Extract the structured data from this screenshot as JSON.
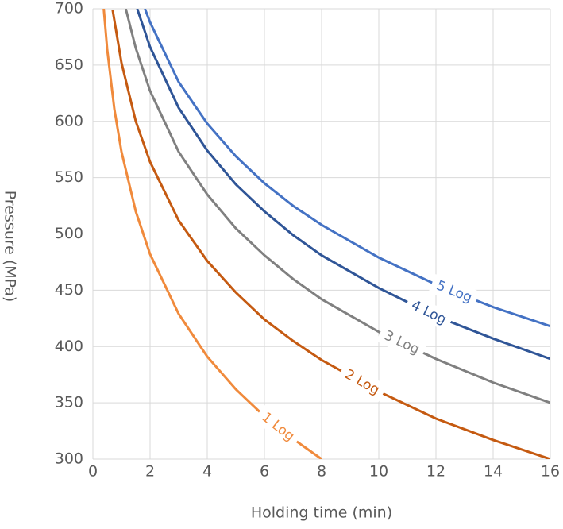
{
  "chart_data": {
    "type": "line",
    "x_label": "Holding time (min)",
    "y_label": "Pressure (MPa)",
    "xlim": [
      0,
      16
    ],
    "xticks": [
      0,
      2,
      4,
      6,
      8,
      10,
      12,
      14,
      16
    ],
    "ylim": [
      300,
      700
    ],
    "yticks": [
      300,
      350,
      400,
      450,
      500,
      550,
      600,
      650,
      700
    ],
    "grid": true,
    "series": [
      {
        "name": "1 Log",
        "color": "#f08a3c",
        "x": [
          0.38,
          0.5,
          0.75,
          1,
          1.5,
          2,
          3,
          4,
          5,
          6,
          7,
          8
        ],
        "values": [
          700,
          664,
          611,
          573,
          520,
          482,
          429,
          391,
          362,
          338,
          318,
          300
        ]
      },
      {
        "name": "2 Log",
        "color": "#c55a11",
        "x": [
          0.69,
          1,
          1.5,
          2,
          3,
          4,
          5,
          6,
          7,
          8,
          10,
          12,
          14,
          16
        ],
        "values": [
          699,
          652,
          600,
          564,
          512,
          476,
          448,
          424,
          405,
          388,
          360,
          336,
          317,
          300
        ]
      },
      {
        "name": "3 Log",
        "color": "#808080",
        "x": [
          1.15,
          1.5,
          2,
          3,
          4,
          5,
          6,
          7,
          8,
          10,
          12,
          14,
          16
        ],
        "values": [
          700,
          665,
          627,
          573,
          535,
          505,
          481,
          460,
          442,
          413,
          389,
          368,
          350
        ]
      },
      {
        "name": "4 Log",
        "color": "#2f5597",
        "x": [
          1.55,
          2,
          3,
          4,
          5,
          6,
          7,
          8,
          10,
          12,
          14,
          16
        ],
        "values": [
          700,
          666,
          612,
          574,
          544,
          520,
          499,
          481,
          452,
          427,
          407,
          389
        ]
      },
      {
        "name": "5 Log",
        "color": "#4472c4",
        "x": [
          1.82,
          2,
          3,
          4,
          5,
          6,
          7,
          8,
          10,
          12,
          14,
          16
        ],
        "values": [
          700,
          688,
          635,
          598,
          569,
          545,
          525,
          508,
          479,
          455,
          435,
          418
        ]
      }
    ]
  }
}
